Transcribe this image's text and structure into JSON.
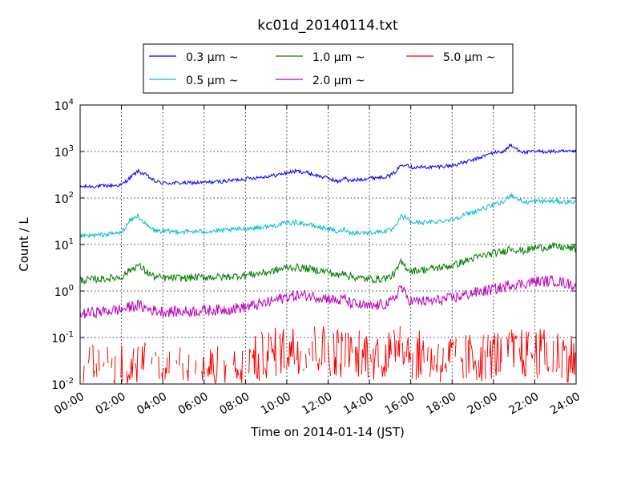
{
  "chart_data": {
    "type": "line",
    "title": "kc01d_20140114.txt",
    "xlabel": "Time on 2014-01-14 (JST)",
    "ylabel": "Count / L",
    "x_range_hours": [
      0,
      24
    ],
    "xticks": [
      {
        "h": 0,
        "label": "00:00"
      },
      {
        "h": 2,
        "label": "02:00"
      },
      {
        "h": 4,
        "label": "04:00"
      },
      {
        "h": 6,
        "label": "06:00"
      },
      {
        "h": 8,
        "label": "08:00"
      },
      {
        "h": 10,
        "label": "10:00"
      },
      {
        "h": 12,
        "label": "12:00"
      },
      {
        "h": 14,
        "label": "14:00"
      },
      {
        "h": 16,
        "label": "16:00"
      },
      {
        "h": 18,
        "label": "18:00"
      },
      {
        "h": 20,
        "label": "20:00"
      },
      {
        "h": 22,
        "label": "22:00"
      },
      {
        "h": 24,
        "label": "24:00"
      }
    ],
    "yscale": "log",
    "ylim": [
      0.01,
      10000
    ],
    "yticks": [
      {
        "v": 0.01,
        "base": "10",
        "exp": "-2"
      },
      {
        "v": 0.1,
        "base": "10",
        "exp": "-1"
      },
      {
        "v": 1,
        "base": "10",
        "exp": "0"
      },
      {
        "v": 10,
        "base": "10",
        "exp": "1"
      },
      {
        "v": 100,
        "base": "10",
        "exp": "2"
      },
      {
        "v": 1000,
        "base": "10",
        "exp": "3"
      },
      {
        "v": 10000,
        "base": "10",
        "exp": "4"
      }
    ],
    "grid": true,
    "legend_position": "top",
    "series": [
      {
        "name": "0.3 μm ~",
        "color": "#0000ff",
        "x": [
          0,
          1,
          2,
          2.4,
          2.8,
          3.2,
          3.6,
          4,
          5,
          6,
          7,
          8,
          9,
          9.5,
          10,
          10.5,
          11,
          11.5,
          12,
          12.5,
          12.8,
          13,
          13.5,
          14,
          14.5,
          15,
          15.3,
          15.5,
          15.8,
          16,
          17,
          18,
          19,
          20,
          20.5,
          20.8,
          21.2,
          21.5,
          22,
          23,
          24
        ],
        "y": [
          175,
          180,
          190,
          270,
          380,
          310,
          230,
          210,
          210,
          215,
          230,
          260,
          290,
          310,
          350,
          380,
          350,
          300,
          270,
          220,
          280,
          230,
          250,
          270,
          280,
          300,
          380,
          500,
          550,
          460,
          460,
          500,
          650,
          950,
          1000,
          1350,
          1100,
          950,
          1000,
          1000,
          980
        ]
      },
      {
        "name": "0.5 μm ~",
        "color": "#00bfbf",
        "x": [
          0,
          1,
          2,
          2.4,
          2.8,
          3.2,
          3.6,
          4,
          5,
          6,
          7,
          8,
          9,
          9.5,
          10,
          10.5,
          11,
          11.5,
          12,
          12.5,
          12.8,
          13,
          13.5,
          14,
          14.5,
          15,
          15.3,
          15.5,
          15.8,
          16,
          17,
          18,
          19,
          20,
          20.5,
          20.8,
          21.2,
          21.5,
          22,
          23,
          24
        ],
        "y": [
          15,
          16,
          18,
          32,
          42,
          26,
          20,
          19,
          19,
          19,
          20,
          22,
          24,
          26,
          29,
          30,
          27,
          24,
          22,
          18,
          22,
          18,
          18,
          18,
          19,
          20,
          24,
          40,
          38,
          30,
          30,
          35,
          50,
          70,
          80,
          120,
          95,
          80,
          85,
          85,
          82
        ]
      },
      {
        "name": "1.0 μm ~",
        "color": "#008000",
        "x": [
          0,
          1,
          2,
          2.4,
          2.8,
          3.2,
          3.6,
          4,
          5,
          6,
          7,
          8,
          9,
          9.5,
          10,
          10.5,
          11,
          11.5,
          12,
          12.5,
          12.8,
          13,
          13.5,
          14,
          14.5,
          15,
          15.3,
          15.5,
          15.8,
          16,
          17,
          18,
          19,
          20,
          20.5,
          20.8,
          21.2,
          21.5,
          22,
          23,
          24
        ],
        "y": [
          1.7,
          1.8,
          2.0,
          2.8,
          3.6,
          2.6,
          2.0,
          1.9,
          1.9,
          2.0,
          2.0,
          2.2,
          2.5,
          2.8,
          3.2,
          3.2,
          3.0,
          2.8,
          2.6,
          2.1,
          2.6,
          2.1,
          1.9,
          1.8,
          1.8,
          2.0,
          2.6,
          4.2,
          3.2,
          2.7,
          3.0,
          3.5,
          5.0,
          6.5,
          7.0,
          8.5,
          7.5,
          7.2,
          8.5,
          9.0,
          8.0
        ]
      },
      {
        "name": "2.0 μm ~",
        "color": "#bf00bf",
        "x": [
          0,
          1,
          2,
          2.4,
          2.8,
          3.2,
          3.6,
          4,
          5,
          6,
          7,
          8,
          9,
          9.5,
          10,
          10.5,
          11,
          11.5,
          12,
          12.5,
          12.8,
          13,
          13.5,
          14,
          14.5,
          15,
          15.3,
          15.5,
          15.8,
          16,
          17,
          18,
          19,
          20,
          20.5,
          20.8,
          21.2,
          21.5,
          22,
          23,
          24
        ],
        "y": [
          0.32,
          0.36,
          0.4,
          0.45,
          0.5,
          0.42,
          0.38,
          0.36,
          0.36,
          0.38,
          0.4,
          0.45,
          0.55,
          0.65,
          0.75,
          0.8,
          0.8,
          0.75,
          0.7,
          0.6,
          0.7,
          0.55,
          0.5,
          0.45,
          0.5,
          0.55,
          0.8,
          1.3,
          0.75,
          0.6,
          0.6,
          0.7,
          0.9,
          1.1,
          1.2,
          1.4,
          1.4,
          1.45,
          1.6,
          1.65,
          1.3
        ]
      },
      {
        "name": "5.0 μm ~",
        "color": "#ff0000",
        "x": [
          0,
          1,
          2,
          3,
          4,
          5,
          6,
          7,
          7.8,
          8.2,
          9,
          10,
          11,
          12,
          13,
          14,
          15,
          15.5,
          16,
          17,
          18,
          19,
          20,
          21,
          22,
          23,
          24
        ],
        "y": [
          0.02,
          0.025,
          0.025,
          0.03,
          0.02,
          0.02,
          0.025,
          0.02,
          0.02,
          0.03,
          0.05,
          0.06,
          0.07,
          0.06,
          0.05,
          0.05,
          0.05,
          0.12,
          0.05,
          0.04,
          0.04,
          0.04,
          0.05,
          0.05,
          0.05,
          0.05,
          0.04
        ]
      }
    ]
  }
}
